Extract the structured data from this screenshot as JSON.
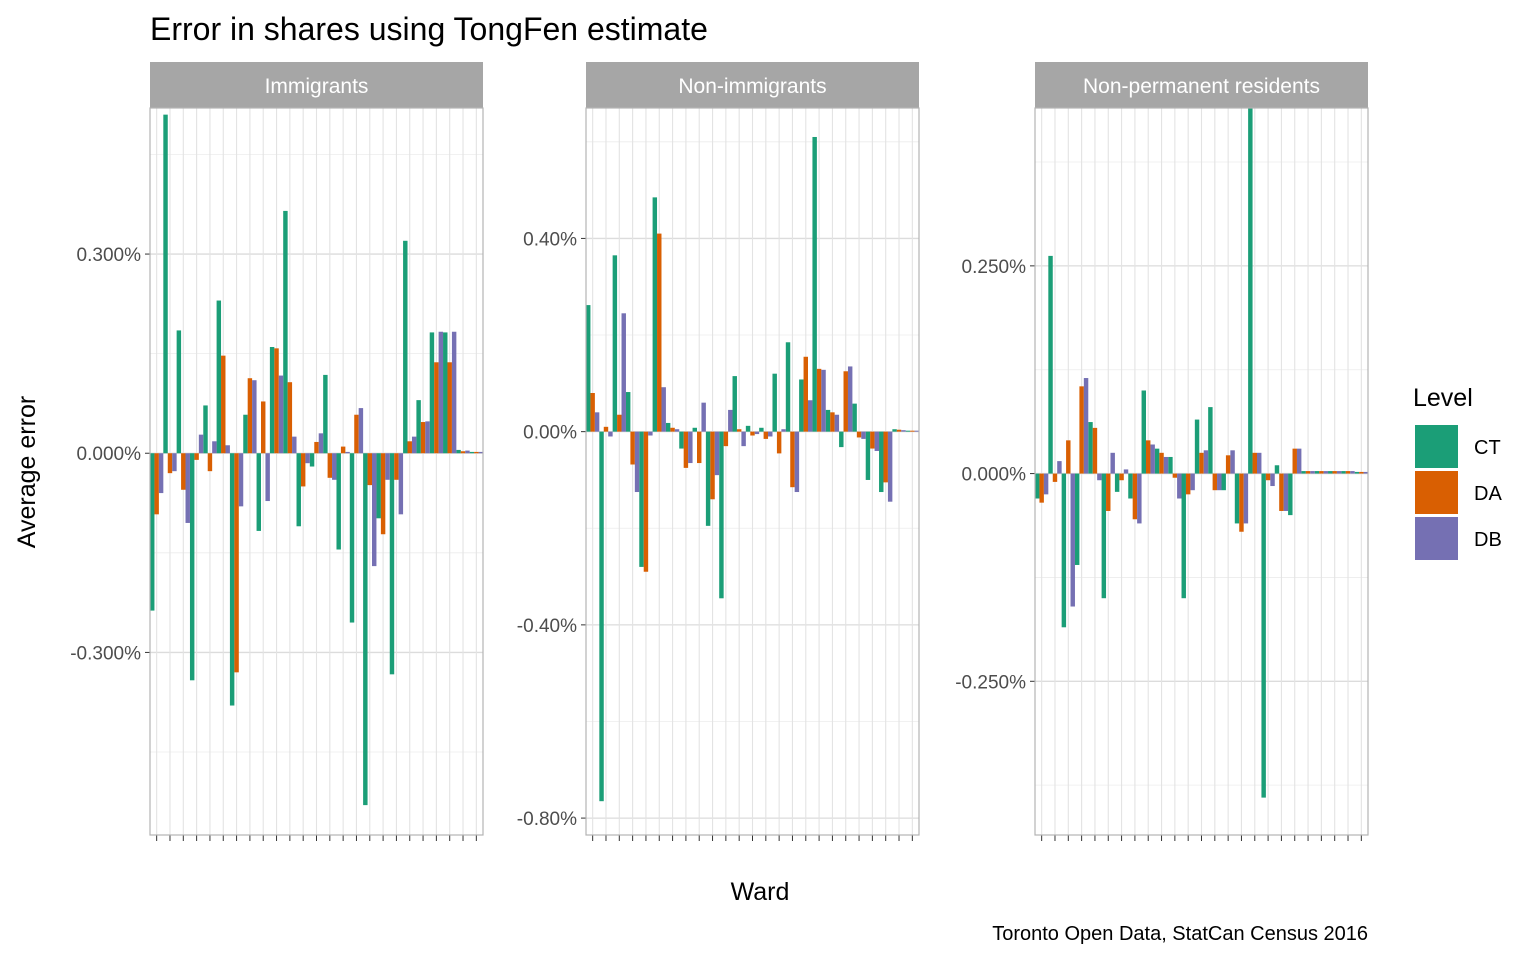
{
  "chart_data": {
    "type": "bar",
    "title": "Error in shares using TongFen estimate",
    "xlabel": "Ward",
    "ylabel": "Average error",
    "caption": "Toronto Open Data, StatCan Census 2016",
    "legend": {
      "title": "Level",
      "position": "right",
      "entries": [
        {
          "name": "CT",
          "color": "#1b9e77"
        },
        {
          "name": "DA",
          "color": "#d95f02"
        },
        {
          "name": "DB",
          "color": "#7570b3"
        }
      ]
    },
    "n_wards": 25,
    "panels": [
      {
        "name": "Immigrants",
        "ylim": [
          -0.00575,
          0.0052
        ],
        "yticks": [
          -0.003,
          0.0,
          0.003
        ],
        "ytick_labels": [
          "-0.300%",
          "0.000%",
          "0.300%"
        ],
        "series": [
          {
            "name": "CT",
            "values": [
              -0.00237,
              0.0051,
              0.00185,
              -0.00342,
              0.00072,
              0.0023,
              -0.0038,
              0.00058,
              -0.00117,
              0.0016,
              0.00365,
              -0.0011,
              -0.0002,
              0.00118,
              -0.00145,
              -0.00255,
              -0.0053,
              -0.00098,
              -0.00333,
              0.0032,
              0.0008,
              0.00182,
              0.00182,
              5e-05,
              2e-05
            ]
          },
          {
            "name": "DA",
            "values": [
              -0.00092,
              -0.0003,
              -0.00055,
              -0.0001,
              -0.00027,
              0.00147,
              -0.0033,
              0.00113,
              0.00078,
              0.00158,
              0.00107,
              -0.0005,
              0.00017,
              -0.00037,
              0.0001,
              0.00058,
              -0.00048,
              -0.00122,
              -0.0004,
              0.00018,
              0.00047,
              0.00137,
              0.00137,
              3e-05,
              2e-05
            ]
          },
          {
            "name": "DB",
            "values": [
              -0.0006,
              -0.00027,
              -0.00105,
              0.00028,
              0.00018,
              0.00012,
              -0.0008,
              0.0011,
              -0.00072,
              0.00117,
              0.00025,
              -0.00015,
              0.0003,
              -0.0004,
              2e-05,
              0.00068,
              -0.0017,
              -0.0004,
              -0.00092,
              0.00025,
              0.00048,
              0.00183,
              0.00183,
              4e-05,
              2e-05
            ]
          }
        ]
      },
      {
        "name": "Non-immigrants",
        "ylim": [
          -0.00835,
          0.0067
        ],
        "yticks": [
          -0.008,
          -0.004,
          0.0,
          0.004
        ],
        "ytick_labels": [
          "-0.80%",
          "-0.40%",
          "0.00%",
          "0.40%"
        ],
        "series": [
          {
            "name": "CT",
            "values": [
              0.00262,
              -0.00765,
              0.00365,
              0.00082,
              -0.0028,
              0.00485,
              0.00018,
              -0.00035,
              8e-05,
              -0.00195,
              -0.00345,
              0.00115,
              0.00012,
              8e-05,
              0.0012,
              0.00185,
              0.00108,
              0.0061,
              0.00045,
              -0.00032,
              0.00058,
              -0.001,
              -0.00125,
              5e-05,
              2e-05
            ]
          },
          {
            "name": "DA",
            "values": [
              0.0008,
              0.0001,
              0.00035,
              -0.00068,
              -0.0029,
              0.0041,
              8e-05,
              -0.00075,
              -0.00065,
              -0.0014,
              -0.0003,
              5e-05,
              -8e-05,
              -0.00015,
              -0.00045,
              -0.00115,
              0.00155,
              0.0013,
              0.0004,
              0.00125,
              -0.00012,
              -0.00035,
              -0.00105,
              4e-05,
              2e-05
            ]
          },
          {
            "name": "DB",
            "values": [
              0.0004,
              -0.0001,
              0.00245,
              -0.00125,
              -8e-05,
              0.00092,
              5e-05,
              -0.00065,
              0.0006,
              -0.0009,
              0.00045,
              -0.0003,
              -5e-05,
              -0.0001,
              5e-05,
              -0.00125,
              0.00065,
              0.00128,
              0.00035,
              0.00135,
              -0.00015,
              -0.0004,
              -0.00145,
              3e-05,
              2e-05
            ]
          }
        ]
      },
      {
        "name": "Non-permanent residents",
        "ylim": [
          -0.00435,
          0.0044
        ],
        "yticks": [
          -0.0025,
          0.0,
          0.0025
        ],
        "ytick_labels": [
          "-0.250%",
          "0.000%",
          "0.250%"
        ],
        "series": [
          {
            "name": "CT",
            "values": [
              -0.0003,
              0.00262,
              -0.00185,
              -0.0011,
              0.00062,
              -0.0015,
              -0.00022,
              -0.0003,
              0.001,
              0.0003,
              0.0002,
              -0.0015,
              0.00065,
              0.0008,
              -0.0002,
              -0.0006,
              0.0044,
              -0.0039,
              0.0001,
              -0.0005,
              3e-05,
              3e-05,
              3e-05,
              3e-05,
              2e-05
            ]
          },
          {
            "name": "DA",
            "values": [
              -0.00035,
              -0.0001,
              0.0004,
              0.00105,
              0.00055,
              -0.00045,
              -8e-05,
              -0.00055,
              0.0004,
              0.00025,
              -5e-05,
              -0.00025,
              0.00025,
              -0.0002,
              0.00022,
              -0.0007,
              0.00025,
              -8e-05,
              -0.00045,
              0.0003,
              3e-05,
              3e-05,
              3e-05,
              3e-05,
              2e-05
            ]
          },
          {
            "name": "DB",
            "values": [
              -0.00025,
              0.00015,
              -0.0016,
              0.00115,
              -8e-05,
              0.00025,
              5e-05,
              -0.0006,
              0.00035,
              0.0002,
              -0.0003,
              -0.0002,
              0.00028,
              -0.0002,
              0.00028,
              -0.0006,
              0.00025,
              -0.00015,
              -0.00045,
              0.0003,
              3e-05,
              3e-05,
              3e-05,
              3e-05,
              2e-05
            ]
          }
        ]
      }
    ]
  }
}
